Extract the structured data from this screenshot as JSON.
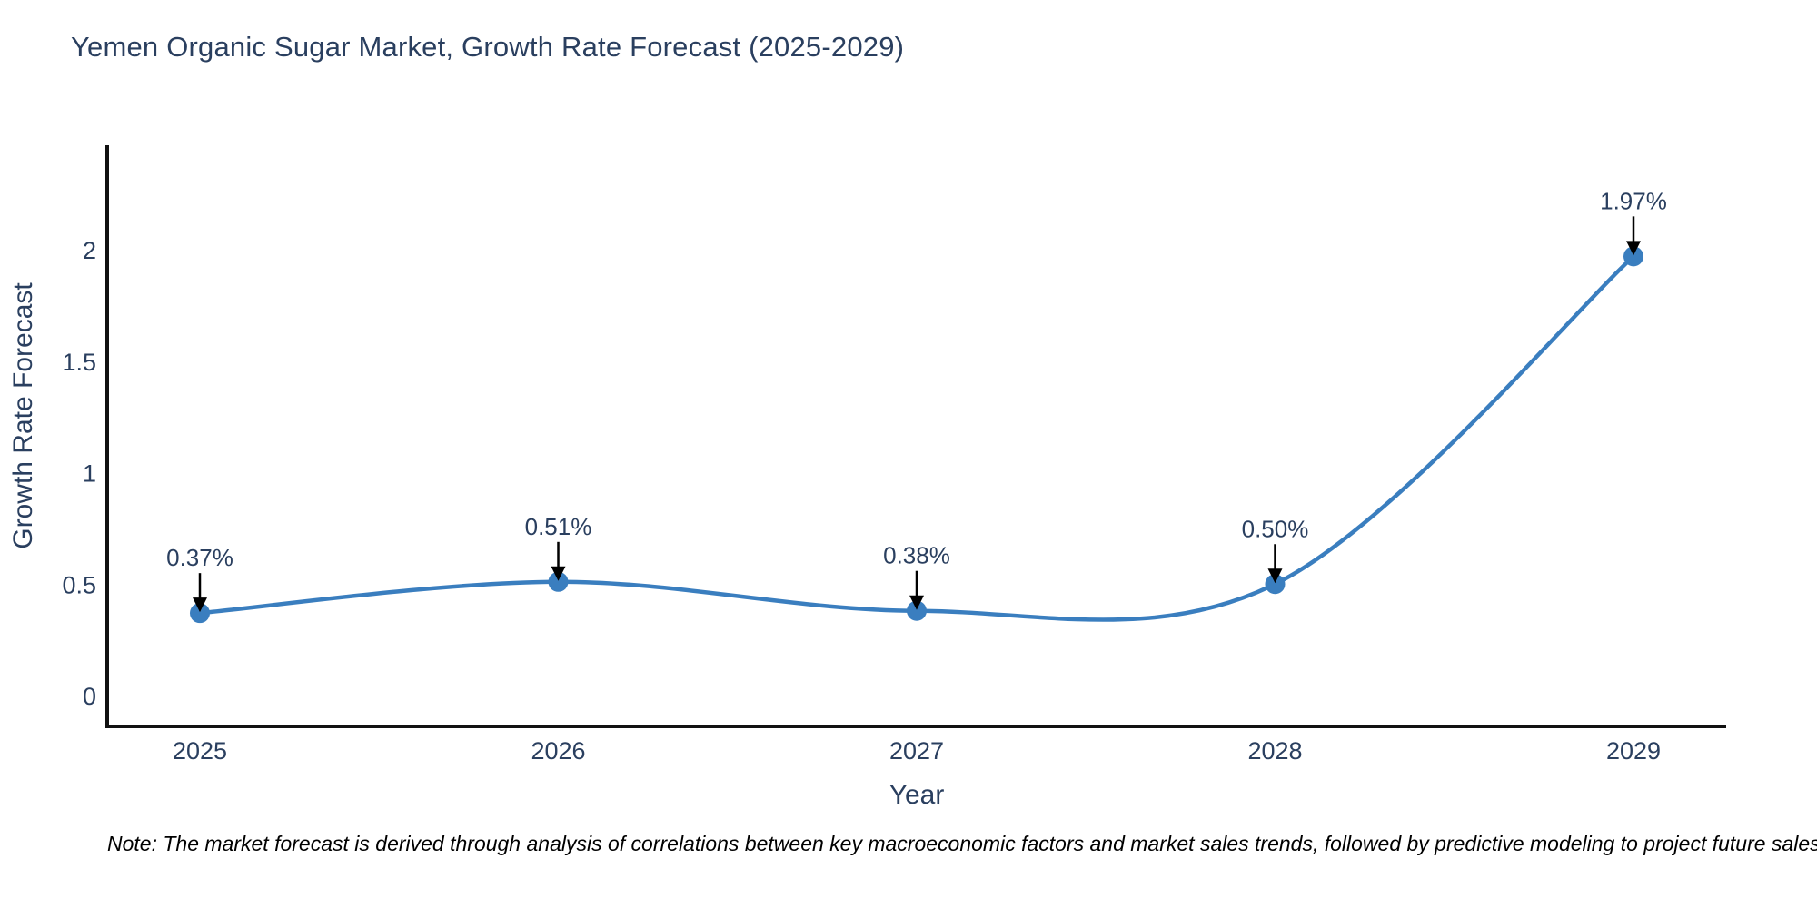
{
  "note": "Note: The market forecast is derived through analysis of correlations between key macroeconomic factors and market sales trends, followed by predictive modeling to project future sales",
  "chart_data": {
    "type": "line",
    "line_shape": "spline",
    "title": "Yemen Organic Sugar Market, Growth Rate Forecast (2025-2029)",
    "xlabel": "Year",
    "ylabel": "Growth Rate Forecast",
    "categories": [
      "2025",
      "2026",
      "2027",
      "2028",
      "2029"
    ],
    "values": [
      0.37,
      0.51,
      0.38,
      0.5,
      1.97
    ],
    "data_labels": [
      "0.37%",
      "0.51%",
      "0.38%",
      "0.50%",
      "1.97%"
    ],
    "ytick_labels": [
      "0",
      "0.5",
      "1",
      "1.5",
      "2"
    ],
    "ytick_values": [
      0,
      0.5,
      1,
      1.5,
      2
    ],
    "ylim": [
      -0.14,
      2.47
    ],
    "grid": false,
    "legend": "none",
    "colors": {
      "line": "#3a7ebf",
      "marker": "#3a7ebf",
      "axis": "#111111",
      "text": "#2a3f5f",
      "annotation_arrow": "#000000",
      "background": "#ffffff"
    }
  }
}
